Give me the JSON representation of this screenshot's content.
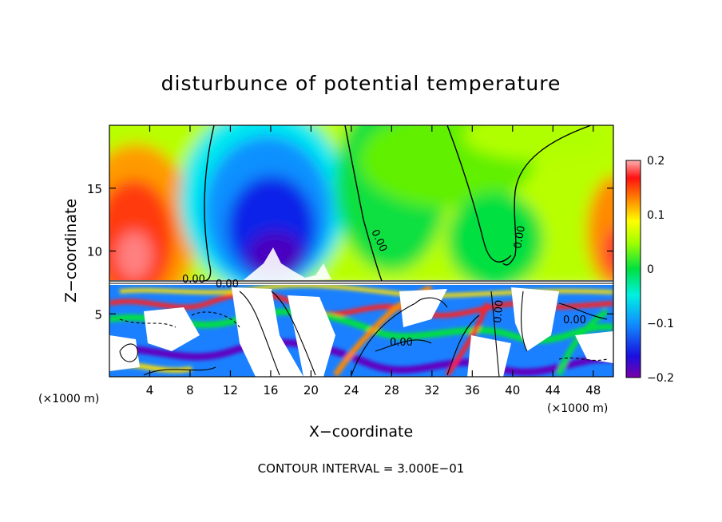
{
  "chart_data": {
    "type": "heatmap",
    "title": "disturbunce of potential temperature",
    "xlabel": "X−coordinate",
    "ylabel": "Z−coordinate",
    "x_unit_left": "(×1000 m)",
    "x_unit_right": "(×1000 m)",
    "x_ticks": [
      4,
      8,
      12,
      16,
      20,
      24,
      28,
      32,
      36,
      40,
      44,
      48
    ],
    "y_ticks": [
      5,
      10,
      15
    ],
    "xlim": [
      0,
      50
    ],
    "ylim": [
      0,
      20
    ],
    "colorbar": {
      "range": [
        -0.2,
        0.2
      ],
      "ticks": [
        "0.2",
        "0.1",
        "0",
        "−0.1",
        "−0.2"
      ],
      "colors": [
        "#7a00a8",
        "#3a00c8",
        "#0a20e8",
        "#1060ff",
        "#1aa0ff",
        "#00e0ff",
        "#00ffc0",
        "#00e040",
        "#40f000",
        "#90ff00",
        "#d8ff00",
        "#ffff00",
        "#ffc000",
        "#ff8800",
        "#ff4000",
        "#ff1010",
        "#ff6060",
        "#ffb0b0"
      ]
    },
    "contour_labels": [
      "0.00",
      "0.00",
      "0.00",
      "0.00",
      "0.00",
      "0.00",
      "0.00"
    ],
    "footer": "CONTOUR INTERVAL = 3.000E−01"
  }
}
